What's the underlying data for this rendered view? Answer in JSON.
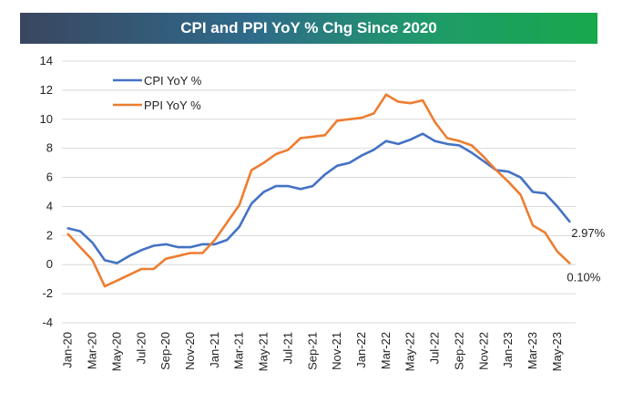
{
  "header": {
    "title": "CPI and PPI YoY % Chg Since 2020"
  },
  "colors": {
    "cpi": "#4472C4",
    "ppi": "#ED7D31",
    "grid": "#d9d9d9",
    "axis": "#bfbfbf"
  },
  "chart_data": {
    "type": "line",
    "title": "CPI and PPI YoY % Chg Since 2020",
    "xlabel": "",
    "ylabel": "",
    "ylim": [
      -4,
      14
    ],
    "yticks": [
      -4,
      -2,
      0,
      2,
      4,
      6,
      8,
      10,
      12,
      14
    ],
    "grid": "horizontal",
    "legend_placement": "top-left",
    "x": [
      "Jan-20",
      "Feb-20",
      "Mar-20",
      "Apr-20",
      "May-20",
      "Jun-20",
      "Jul-20",
      "Aug-20",
      "Sep-20",
      "Oct-20",
      "Nov-20",
      "Dec-20",
      "Jan-21",
      "Feb-21",
      "Mar-21",
      "Apr-21",
      "May-21",
      "Jun-21",
      "Jul-21",
      "Aug-21",
      "Sep-21",
      "Oct-21",
      "Nov-21",
      "Dec-21",
      "Jan-22",
      "Feb-22",
      "Mar-22",
      "Apr-22",
      "May-22",
      "Jun-22",
      "Jul-22",
      "Aug-22",
      "Sep-22",
      "Oct-22",
      "Nov-22",
      "Dec-22",
      "Jan-23",
      "Feb-23",
      "Mar-23",
      "Apr-23",
      "May-23",
      "Jun-23"
    ],
    "xtick_labels": [
      "Jan-20",
      "Mar-20",
      "May-20",
      "Jul-20",
      "Sep-20",
      "Nov-20",
      "Jan-21",
      "Mar-21",
      "May-21",
      "Jul-21",
      "Sep-21",
      "Nov-21",
      "Jan-22",
      "Mar-22",
      "May-22",
      "Jul-22",
      "Sep-22",
      "Nov-22",
      "Jan-23",
      "Mar-23",
      "May-23"
    ],
    "series": [
      {
        "name": "CPI YoY %",
        "values": [
          2.5,
          2.3,
          1.5,
          0.3,
          0.1,
          0.6,
          1.0,
          1.3,
          1.4,
          1.2,
          1.2,
          1.4,
          1.4,
          1.7,
          2.6,
          4.2,
          5.0,
          5.4,
          5.4,
          5.2,
          5.4,
          6.2,
          6.8,
          7.0,
          7.5,
          7.9,
          8.5,
          8.3,
          8.6,
          9.0,
          8.5,
          8.3,
          8.2,
          7.7,
          7.1,
          6.5,
          6.4,
          6.0,
          5.0,
          4.9,
          4.0,
          2.97
        ]
      },
      {
        "name": "PPI YoY %",
        "values": [
          2.1,
          1.2,
          0.3,
          -1.5,
          -1.1,
          -0.7,
          -0.3,
          -0.3,
          0.4,
          0.6,
          0.8,
          0.8,
          1.7,
          2.9,
          4.1,
          6.5,
          7.0,
          7.6,
          7.9,
          8.7,
          8.8,
          8.9,
          9.9,
          10.0,
          10.1,
          10.4,
          11.7,
          11.2,
          11.1,
          11.3,
          9.8,
          8.7,
          8.5,
          8.2,
          7.4,
          6.5,
          5.7,
          4.8,
          2.7,
          2.2,
          0.9,
          0.1
        ]
      }
    ],
    "end_labels": [
      "2.97%",
      "0.10%"
    ]
  }
}
